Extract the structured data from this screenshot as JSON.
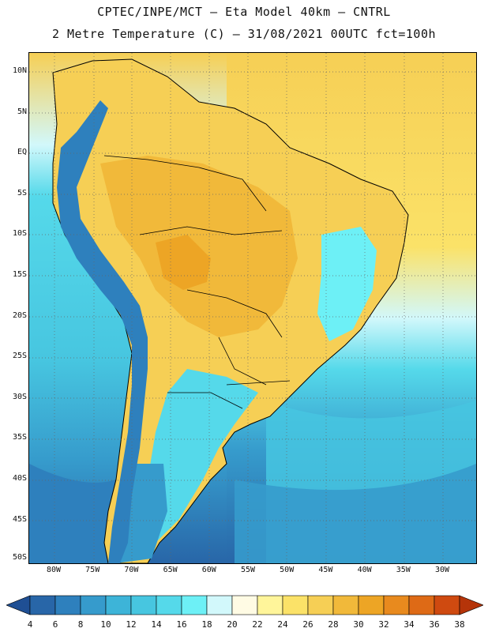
{
  "title": {
    "line1": "CPTEC/INPE/MCT –  Eta Model 40km – CNTRL",
    "line2": "2 Metre Temperature (C) – 31/08/2021 00UTC fct=100h"
  },
  "map": {
    "lat_labels": [
      "10N",
      "5N",
      "EQ",
      "5S",
      "10S",
      "15S",
      "20S",
      "25S",
      "30S",
      "35S",
      "40S",
      "45S",
      "50S"
    ],
    "lon_labels": [
      "80W",
      "75W",
      "70W",
      "65W",
      "60W",
      "55W",
      "50W",
      "45W",
      "40W",
      "35W",
      "30W"
    ],
    "grid": "dotted"
  },
  "colorbar": {
    "labels": [
      "4",
      "6",
      "8",
      "10",
      "12",
      "14",
      "16",
      "18",
      "20",
      "22",
      "24",
      "26",
      "28",
      "30",
      "32",
      "34",
      "36",
      "38"
    ],
    "colors": [
      "#1f4f94",
      "#2866a8",
      "#2e80bd",
      "#369bcc",
      "#3db4d8",
      "#47c6e0",
      "#55d9ea",
      "#6df0f6",
      "#d2f8fb",
      "#fffbe4",
      "#fff59a",
      "#fbe268",
      "#f6cf55",
      "#f1b93a",
      "#eda525",
      "#e88a1e",
      "#de6a16",
      "#cf4a10",
      "#b53409"
    ]
  }
}
